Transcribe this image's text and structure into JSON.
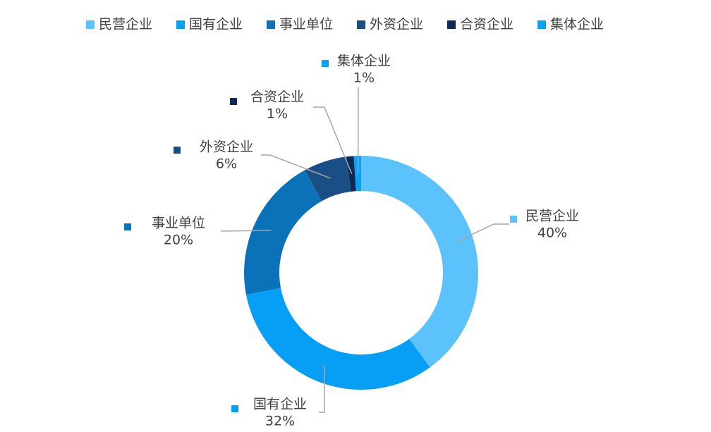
{
  "chart_data": {
    "type": "donut",
    "categories": [
      "民营企业",
      "国有企业",
      "事业单位",
      "外资企业",
      "合资企业",
      "集体企业"
    ],
    "values": [
      40,
      32,
      20,
      6,
      1,
      1
    ],
    "value_labels": [
      "40%",
      "32%",
      "20%",
      "6%",
      "1%",
      "1%"
    ],
    "colors": [
      "#5bc2fb",
      "#079ff5",
      "#0b72b9",
      "#1a4f86",
      "#0f2a55",
      "#0aa3f2"
    ],
    "legend": "top"
  }
}
